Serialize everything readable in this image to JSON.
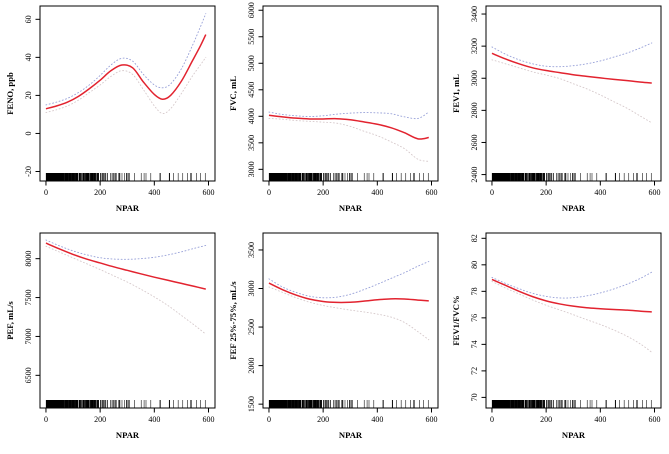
{
  "page": {
    "background": "#ffffff",
    "description": "Grid of six GAM smooth plots of lung-function measures versus NPAR with red fitted curves, dotted confidence bands and rug plots"
  },
  "colors": {
    "fit_line": "#e2232f",
    "upper_ci": "#97a0d8",
    "lower_ci": "#d6c9cb",
    "axis": "#000000",
    "rug": "#000000"
  },
  "chart_data": [
    {
      "id": "feno",
      "type": "line",
      "title": "",
      "xlabel": "NPAR",
      "ylabel": "FENO, ppb",
      "xlim": [
        -22,
        624
      ],
      "ylim": [
        -25,
        67
      ],
      "xticks": [
        0,
        200,
        400,
        600
      ],
      "yticks": [
        -20,
        0,
        20,
        40,
        60
      ],
      "grid": false,
      "legend": "none",
      "x": [
        0,
        40,
        80,
        120,
        160,
        200,
        240,
        280,
        320,
        360,
        400,
        430,
        460,
        500,
        540,
        570,
        590
      ],
      "series": [
        {
          "name": "smooth-fit",
          "style": "solid",
          "color": "#e2232f",
          "y": [
            13,
            14.5,
            16.5,
            19.5,
            23.5,
            28,
            33,
            36,
            34.5,
            27,
            20.5,
            18,
            20,
            27.5,
            38,
            46,
            52
          ]
        },
        {
          "name": "upper-ci",
          "style": "dotted",
          "color": "#97a0d8",
          "y": [
            15,
            16.5,
            18.5,
            21.5,
            25.5,
            30.5,
            36,
            39.5,
            38,
            31,
            25.5,
            24,
            26,
            34,
            46,
            56,
            63
          ]
        },
        {
          "name": "lower-ci",
          "style": "dotted",
          "color": "#d6c9cb",
          "y": [
            11,
            12.5,
            14.5,
            17.5,
            21.5,
            25.5,
            30,
            33,
            31,
            23,
            14.5,
            10.5,
            13,
            21,
            30,
            36,
            40
          ]
        }
      ]
    },
    {
      "id": "fvc",
      "type": "line",
      "title": "",
      "xlabel": "NPAR",
      "ylabel": "FVC, mL",
      "xlim": [
        -22,
        624
      ],
      "ylim": [
        2780,
        6080
      ],
      "xticks": [
        0,
        200,
        400,
        600
      ],
      "yticks": [
        3000,
        3500,
        4000,
        4500,
        5000,
        5500,
        6000
      ],
      "grid": false,
      "legend": "none",
      "x": [
        0,
        50,
        100,
        150,
        200,
        250,
        300,
        350,
        400,
        450,
        500,
        550,
        590
      ],
      "series": [
        {
          "name": "smooth-fit",
          "style": "solid",
          "color": "#e2232f",
          "y": [
            4020,
            3990,
            3965,
            3950,
            3950,
            3955,
            3935,
            3895,
            3850,
            3785,
            3690,
            3575,
            3600
          ]
        },
        {
          "name": "upper-ci",
          "style": "dotted",
          "color": "#97a0d8",
          "y": [
            4080,
            4035,
            4010,
            3995,
            4010,
            4040,
            4060,
            4070,
            4065,
            4050,
            3990,
            3960,
            4080
          ]
        },
        {
          "name": "lower-ci",
          "style": "dotted",
          "color": "#d6c9cb",
          "y": [
            3960,
            3945,
            3920,
            3905,
            3890,
            3870,
            3810,
            3720,
            3635,
            3520,
            3390,
            3190,
            3150
          ]
        }
      ]
    },
    {
      "id": "fev1",
      "type": "line",
      "title": "",
      "xlabel": "NPAR",
      "ylabel": "FEV1, mL",
      "xlim": [
        -22,
        624
      ],
      "ylim": [
        2360,
        3450
      ],
      "xticks": [
        0,
        200,
        400,
        600
      ],
      "yticks": [
        2400,
        2600,
        2800,
        3000,
        3200,
        3400
      ],
      "grid": false,
      "legend": "none",
      "x": [
        0,
        50,
        100,
        150,
        200,
        250,
        300,
        350,
        400,
        450,
        500,
        550,
        590
      ],
      "series": [
        {
          "name": "smooth-fit",
          "style": "solid",
          "color": "#e2232f",
          "y": [
            3155,
            3120,
            3090,
            3065,
            3048,
            3035,
            3022,
            3012,
            3002,
            2993,
            2985,
            2976,
            2970
          ]
        },
        {
          "name": "upper-ci",
          "style": "dotted",
          "color": "#97a0d8",
          "y": [
            3195,
            3150,
            3115,
            3090,
            3075,
            3072,
            3078,
            3090,
            3108,
            3132,
            3158,
            3190,
            3220
          ]
        },
        {
          "name": "lower-ci",
          "style": "dotted",
          "color": "#d6c9cb",
          "y": [
            3115,
            3090,
            3065,
            3040,
            3020,
            2998,
            2966,
            2934,
            2896,
            2854,
            2812,
            2762,
            2722
          ]
        }
      ]
    },
    {
      "id": "pef",
      "type": "line",
      "title": "",
      "xlabel": "NPAR",
      "ylabel": "PEF, mL/s",
      "xlim": [
        -22,
        624
      ],
      "ylim": [
        6080,
        8330
      ],
      "xticks": [
        0,
        200,
        400,
        600
      ],
      "yticks": [
        6500,
        7000,
        7500,
        8000
      ],
      "grid": false,
      "legend": "none",
      "x": [
        0,
        50,
        100,
        150,
        200,
        250,
        300,
        350,
        400,
        450,
        500,
        550,
        590
      ],
      "series": [
        {
          "name": "smooth-fit",
          "style": "solid",
          "color": "#e2232f",
          "y": [
            8200,
            8125,
            8055,
            7995,
            7945,
            7895,
            7850,
            7805,
            7762,
            7722,
            7682,
            7642,
            7608
          ]
        },
        {
          "name": "upper-ci",
          "style": "dotted",
          "color": "#97a0d8",
          "y": [
            8240,
            8165,
            8100,
            8050,
            8012,
            7995,
            7992,
            8000,
            8018,
            8048,
            8088,
            8135,
            8170
          ]
        },
        {
          "name": "lower-ci",
          "style": "dotted",
          "color": "#d6c9cb",
          "y": [
            8160,
            8085,
            8010,
            7935,
            7860,
            7780,
            7700,
            7608,
            7508,
            7398,
            7270,
            7140,
            7030
          ]
        }
      ]
    },
    {
      "id": "fef2575",
      "type": "line",
      "title": "",
      "xlabel": "NPAR",
      "ylabel": "FEF 25%-75%, mL/s",
      "xlim": [
        -22,
        624
      ],
      "ylim": [
        1450,
        3720
      ],
      "xticks": [
        0,
        200,
        400,
        600
      ],
      "yticks": [
        1500,
        2000,
        2500,
        3000,
        3500
      ],
      "grid": false,
      "legend": "none",
      "x": [
        0,
        50,
        100,
        150,
        200,
        250,
        300,
        350,
        400,
        450,
        500,
        550,
        590
      ],
      "series": [
        {
          "name": "smooth-fit",
          "style": "solid",
          "color": "#e2232f",
          "y": [
            3070,
            2985,
            2915,
            2862,
            2832,
            2820,
            2822,
            2836,
            2854,
            2866,
            2864,
            2850,
            2840
          ]
        },
        {
          "name": "upper-ci",
          "style": "dotted",
          "color": "#97a0d8",
          "y": [
            3125,
            3020,
            2950,
            2900,
            2880,
            2888,
            2925,
            2985,
            3055,
            3130,
            3205,
            3290,
            3350
          ]
        },
        {
          "name": "lower-ci",
          "style": "dotted",
          "color": "#d6c9cb",
          "y": [
            3020,
            2950,
            2880,
            2822,
            2780,
            2748,
            2720,
            2696,
            2668,
            2630,
            2560,
            2440,
            2335
          ]
        }
      ]
    },
    {
      "id": "fev1fvc",
      "type": "line",
      "title": "",
      "xlabel": "NPAR",
      "ylabel": "FEV1/FVC%",
      "xlim": [
        -22,
        624
      ],
      "ylim": [
        69.2,
        82.4
      ],
      "xticks": [
        0,
        200,
        400,
        600
      ],
      "yticks": [
        70,
        72,
        74,
        76,
        78,
        80,
        82
      ],
      "grid": false,
      "legend": "none",
      "x": [
        0,
        50,
        100,
        150,
        200,
        250,
        300,
        350,
        400,
        450,
        500,
        550,
        590
      ],
      "series": [
        {
          "name": "smooth-fit",
          "style": "solid",
          "color": "#e2232f",
          "y": [
            78.9,
            78.45,
            78.0,
            77.6,
            77.28,
            77.05,
            76.88,
            76.76,
            76.69,
            76.63,
            76.58,
            76.5,
            76.45
          ]
        },
        {
          "name": "upper-ci",
          "style": "dotted",
          "color": "#97a0d8",
          "y": [
            79.05,
            78.6,
            78.2,
            77.85,
            77.62,
            77.5,
            77.52,
            77.66,
            77.88,
            78.18,
            78.55,
            79.0,
            79.45
          ]
        },
        {
          "name": "lower-ci",
          "style": "dotted",
          "color": "#d6c9cb",
          "y": [
            78.75,
            78.25,
            77.8,
            77.35,
            76.95,
            76.6,
            76.24,
            75.86,
            75.5,
            75.08,
            74.6,
            74.0,
            73.4
          ]
        }
      ]
    }
  ],
  "rug": {
    "axis": "x",
    "distribution": "right-skewed, solid-dense 0-210, striated 210-330, sparse 330-600",
    "count": 430,
    "exp_mean": 95,
    "max": 600,
    "extra_ticks": [
      455,
      470,
      488,
      505,
      522,
      538,
      556,
      571,
      588
    ],
    "seed": 1337
  }
}
